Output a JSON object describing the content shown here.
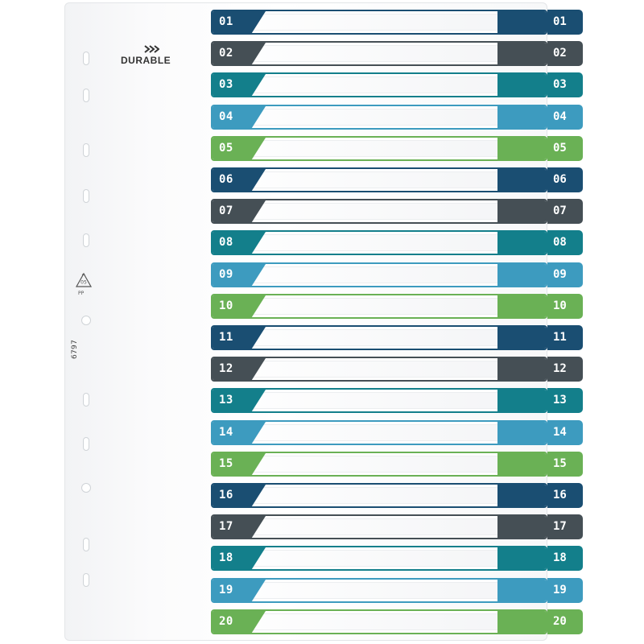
{
  "brand": {
    "name": "DURABLE",
    "logo_icon": "chevrons-icon"
  },
  "sheet": {
    "recycle_code": "05",
    "recycle_material": "PP",
    "product_code": "6797"
  },
  "colors": {
    "navy": "#1a4e72",
    "slate": "#454f55",
    "teal": "#137f8b",
    "light_blue": "#3d9bbf",
    "green": "#6ab155"
  },
  "tabs": [
    {
      "label": "01",
      "color": "#1a4e72"
    },
    {
      "label": "02",
      "color": "#454f55"
    },
    {
      "label": "03",
      "color": "#137f8b"
    },
    {
      "label": "04",
      "color": "#3d9bbf"
    },
    {
      "label": "05",
      "color": "#6ab155"
    },
    {
      "label": "06",
      "color": "#1a4e72"
    },
    {
      "label": "07",
      "color": "#454f55"
    },
    {
      "label": "08",
      "color": "#137f8b"
    },
    {
      "label": "09",
      "color": "#3d9bbf"
    },
    {
      "label": "10",
      "color": "#6ab155"
    },
    {
      "label": "11",
      "color": "#1a4e72"
    },
    {
      "label": "12",
      "color": "#454f55"
    },
    {
      "label": "13",
      "color": "#137f8b"
    },
    {
      "label": "14",
      "color": "#3d9bbf"
    },
    {
      "label": "15",
      "color": "#6ab155"
    },
    {
      "label": "16",
      "color": "#1a4e72"
    },
    {
      "label": "17",
      "color": "#454f55"
    },
    {
      "label": "18",
      "color": "#137f8b"
    },
    {
      "label": "19",
      "color": "#3d9bbf"
    },
    {
      "label": "20",
      "color": "#6ab155"
    }
  ]
}
